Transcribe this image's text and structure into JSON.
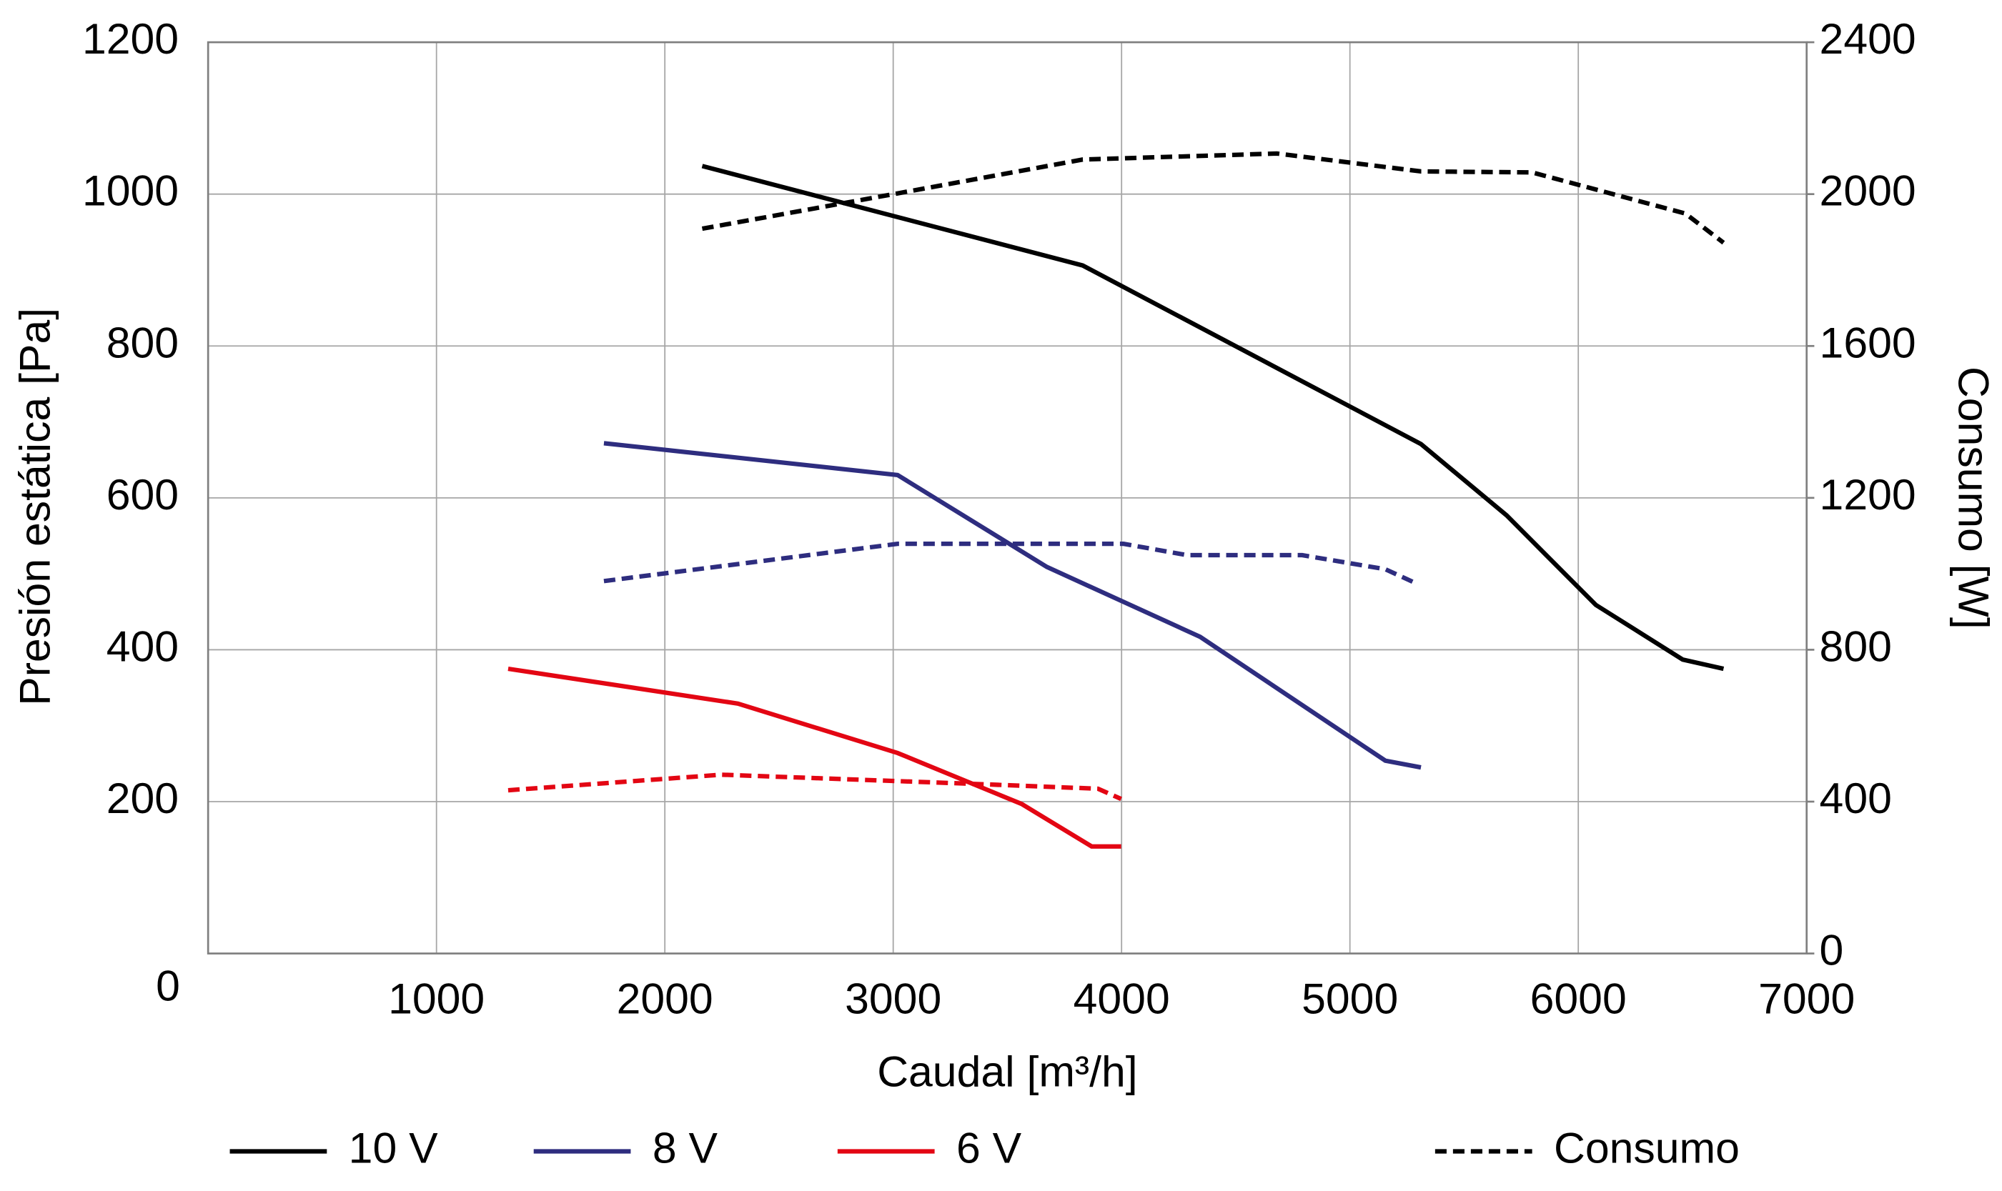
{
  "chart_data": {
    "type": "line",
    "x_label": "Caudal [m³/h]",
    "y_label": "Presión estática [Pa]",
    "y2_label": "Consumo [W]",
    "xlim": [
      0,
      7000
    ],
    "xticks": [
      0,
      1000,
      2000,
      3000,
      4000,
      5000,
      6000,
      7000
    ],
    "ylim": [
      0,
      1200
    ],
    "yticks": [
      200,
      400,
      600,
      800,
      1000,
      1200
    ],
    "y2lim": [
      0,
      2400
    ],
    "y2ticks": [
      0,
      400,
      800,
      1200,
      1600,
      2000,
      2400
    ],
    "grid": true,
    "consumption_label": "Consumo",
    "series": [
      {
        "name": "10 V",
        "color": "#000000",
        "x": [
          2164,
          3830,
          5311,
          5686,
          6077,
          6457,
          6636
        ],
        "values": [
          1037,
          906,
          671,
          577,
          459,
          387,
          375
        ]
      },
      {
        "name": "8 V",
        "color": "#2e2d7f",
        "x": [
          1733,
          3019,
          3673,
          4344,
          5155,
          5311
        ],
        "values": [
          672,
          630,
          509,
          417,
          254,
          245
        ]
      },
      {
        "name": "6 V",
        "color": "#e30613",
        "x": [
          1314,
          2320,
          3019,
          3562,
          3869,
          3998
        ],
        "values": [
          375,
          329,
          264,
          197,
          141,
          141
        ]
      },
      {
        "color": "#000000",
        "dashed": true,
        "axis": "y2",
        "x": [
          2164,
          3002,
          3830,
          4680,
          5311,
          5798,
          6469,
          6636
        ],
        "values": [
          1909,
          2000,
          2091,
          2107,
          2060,
          2057,
          1949,
          1872
        ]
      },
      {
        "color": "#2e2d7f",
        "dashed": true,
        "axis": "y2",
        "x": [
          1733,
          3019,
          4009,
          4288,
          4791,
          5155,
          5278
        ],
        "values": [
          981,
          1079,
          1079,
          1049,
          1049,
          1012,
          978
        ]
      },
      {
        "color": "#e30613",
        "dashed": true,
        "axis": "y2",
        "x": [
          1314,
          2248,
          3338,
          3897,
          3998
        ],
        "values": [
          430,
          471,
          447,
          434,
          407
        ]
      }
    ]
  }
}
